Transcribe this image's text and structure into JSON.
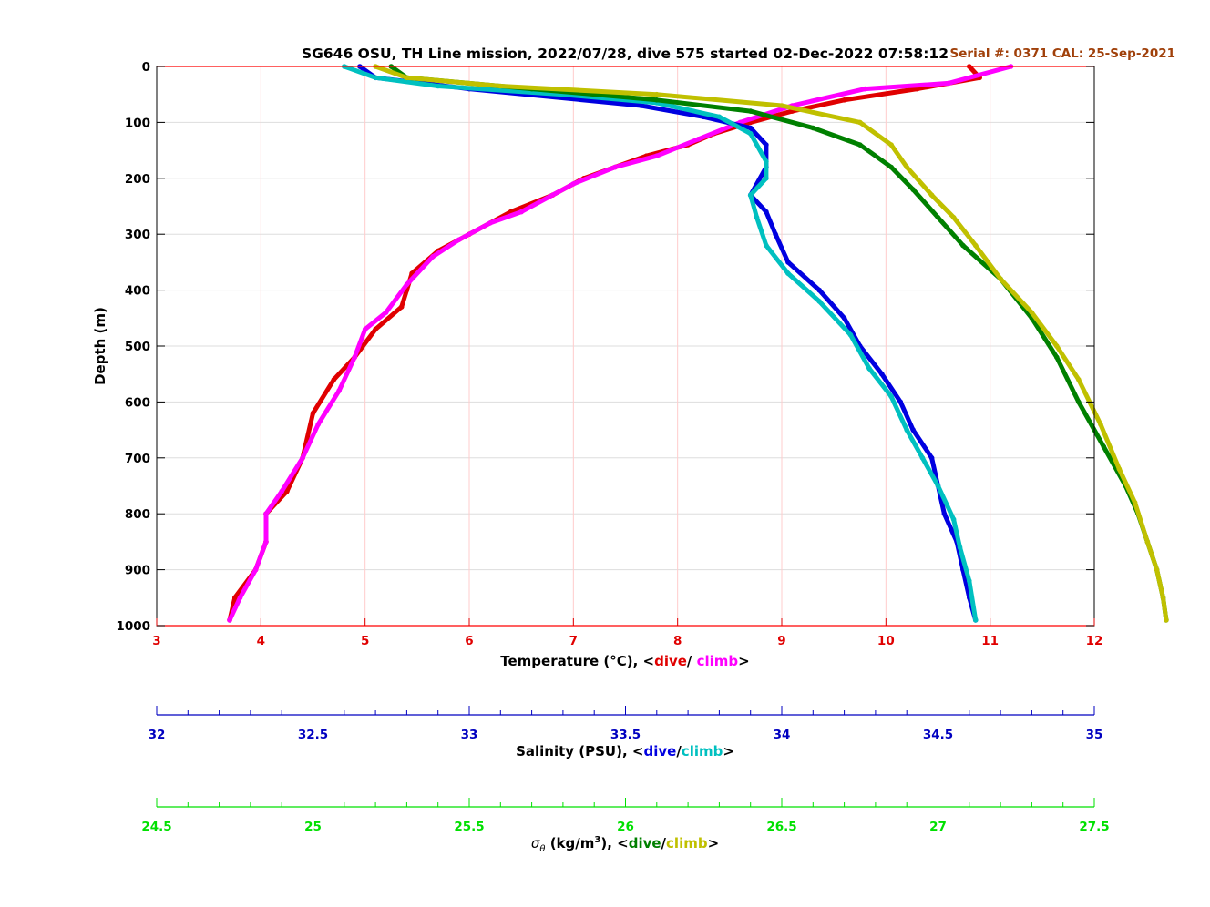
{
  "chart_data": {
    "type": "scatter",
    "title": "SG646 OSU, TH Line mission, 2022/07/28, dive 575 started 02-Dec-2022 07:58:12",
    "serial_label": "Serial #: 0371  CAL: 25-Sep-2021",
    "ylabel": "Depth (m)",
    "ylim": [
      0,
      1000
    ],
    "y_reversed": true,
    "yticks": [
      "0",
      "100",
      "200",
      "300",
      "400",
      "500",
      "600",
      "700",
      "800",
      "900",
      "1000"
    ],
    "grid": true,
    "axes": {
      "temperature": {
        "label_prefix": "Temperature (°C), <",
        "dive_label": "dive",
        "sep": "/ ",
        "climb_label": "climb",
        "label_suffix": ">",
        "xlim": [
          3,
          12
        ],
        "ticks": [
          "3",
          "4",
          "5",
          "6",
          "7",
          "8",
          "9",
          "10",
          "11",
          "12"
        ],
        "color": "#e00000"
      },
      "salinity": {
        "label_prefix": "Salinity (PSU), <",
        "dive_label": "dive",
        "sep": "/",
        "climb_label": "climb",
        "label_suffix": ">",
        "xlim": [
          32,
          35
        ],
        "ticks": [
          "32",
          "32.5",
          "33",
          "33.5",
          "34",
          "34.5",
          "35"
        ],
        "color": "#0000c0"
      },
      "density": {
        "label_sigma": "σ",
        "label_theta": "θ",
        "label_unit": " (kg/m",
        "label_exp": "3",
        "label_prefix": "), <",
        "dive_label": "dive",
        "sep": "/",
        "climb_label": "climb",
        "label_suffix": ">",
        "xlim": [
          24.5,
          27.5
        ],
        "ticks": [
          "24.5",
          "25",
          "25.5",
          "26",
          "26.5",
          "27",
          "27.5"
        ],
        "color": "#00e000"
      }
    },
    "series": [
      {
        "name": "Temperature dive",
        "axis": "temperature",
        "color": "#e00000",
        "points": [
          [
            10.8,
            0
          ],
          [
            10.9,
            20
          ],
          [
            10.3,
            40
          ],
          [
            9.6,
            60
          ],
          [
            9.1,
            80
          ],
          [
            8.7,
            100
          ],
          [
            8.35,
            120
          ],
          [
            8.1,
            140
          ],
          [
            7.7,
            160
          ],
          [
            7.4,
            180
          ],
          [
            7.1,
            200
          ],
          [
            6.8,
            230
          ],
          [
            6.4,
            260
          ],
          [
            6.0,
            300
          ],
          [
            5.7,
            330
          ],
          [
            5.45,
            370
          ],
          [
            5.4,
            400
          ],
          [
            5.35,
            430
          ],
          [
            5.1,
            470
          ],
          [
            4.9,
            520
          ],
          [
            4.7,
            560
          ],
          [
            4.5,
            620
          ],
          [
            4.4,
            700
          ],
          [
            4.25,
            760
          ],
          [
            4.05,
            800
          ],
          [
            4.05,
            850
          ],
          [
            3.95,
            900
          ],
          [
            3.75,
            950
          ],
          [
            3.7,
            990
          ]
        ]
      },
      {
        "name": "Temperature climb",
        "axis": "temperature",
        "color": "#ff00ff",
        "points": [
          [
            11.2,
            0
          ],
          [
            10.6,
            30
          ],
          [
            9.8,
            40
          ],
          [
            9.1,
            70
          ],
          [
            8.6,
            100
          ],
          [
            8.2,
            130
          ],
          [
            7.8,
            160
          ],
          [
            7.4,
            180
          ],
          [
            7.0,
            210
          ],
          [
            6.5,
            260
          ],
          [
            6.2,
            280
          ],
          [
            5.9,
            310
          ],
          [
            5.65,
            340
          ],
          [
            5.4,
            390
          ],
          [
            5.2,
            440
          ],
          [
            5.0,
            470
          ],
          [
            4.9,
            520
          ],
          [
            4.75,
            580
          ],
          [
            4.55,
            640
          ],
          [
            4.4,
            700
          ],
          [
            4.2,
            760
          ],
          [
            4.05,
            800
          ],
          [
            4.05,
            850
          ],
          [
            3.95,
            900
          ],
          [
            3.8,
            950
          ],
          [
            3.7,
            990
          ]
        ]
      },
      {
        "name": "Salinity dive",
        "axis": "salinity",
        "color": "#0000e0",
        "points": [
          [
            32.65,
            0
          ],
          [
            32.7,
            20
          ],
          [
            33.0,
            40
          ],
          [
            33.55,
            70
          ],
          [
            33.75,
            90
          ],
          [
            33.9,
            110
          ],
          [
            33.95,
            140
          ],
          [
            33.95,
            180
          ],
          [
            33.9,
            230
          ],
          [
            33.95,
            260
          ],
          [
            33.98,
            300
          ],
          [
            34.02,
            350
          ],
          [
            34.12,
            400
          ],
          [
            34.2,
            450
          ],
          [
            34.25,
            500
          ],
          [
            34.32,
            550
          ],
          [
            34.38,
            600
          ],
          [
            34.42,
            650
          ],
          [
            34.48,
            700
          ],
          [
            34.5,
            750
          ],
          [
            34.52,
            800
          ],
          [
            34.56,
            850
          ],
          [
            34.58,
            900
          ],
          [
            34.6,
            950
          ],
          [
            34.62,
            990
          ]
        ]
      },
      {
        "name": "Salinity climb",
        "axis": "salinity",
        "color": "#00c0c0",
        "points": [
          [
            32.6,
            0
          ],
          [
            32.7,
            20
          ],
          [
            32.9,
            35
          ],
          [
            33.3,
            50
          ],
          [
            33.6,
            65
          ],
          [
            33.8,
            90
          ],
          [
            33.9,
            120
          ],
          [
            33.95,
            170
          ],
          [
            33.95,
            200
          ],
          [
            33.9,
            230
          ],
          [
            33.92,
            270
          ],
          [
            33.95,
            320
          ],
          [
            34.02,
            370
          ],
          [
            34.12,
            420
          ],
          [
            34.22,
            480
          ],
          [
            34.28,
            540
          ],
          [
            34.35,
            590
          ],
          [
            34.4,
            650
          ],
          [
            34.45,
            700
          ],
          [
            34.5,
            750
          ],
          [
            34.55,
            810
          ],
          [
            34.57,
            860
          ],
          [
            34.6,
            920
          ],
          [
            34.62,
            990
          ]
        ]
      },
      {
        "name": "Sigma-theta dive",
        "axis": "density",
        "color": "#008000",
        "points": [
          [
            25.25,
            0
          ],
          [
            25.3,
            20
          ],
          [
            25.7,
            40
          ],
          [
            26.1,
            60
          ],
          [
            26.4,
            80
          ],
          [
            26.6,
            110
          ],
          [
            26.75,
            140
          ],
          [
            26.85,
            180
          ],
          [
            26.92,
            220
          ],
          [
            27.0,
            270
          ],
          [
            27.08,
            320
          ],
          [
            27.2,
            380
          ],
          [
            27.3,
            450
          ],
          [
            27.38,
            520
          ],
          [
            27.45,
            600
          ],
          [
            27.53,
            680
          ],
          [
            27.6,
            750
          ],
          [
            27.64,
            800
          ],
          [
            27.67,
            850
          ],
          [
            27.7,
            900
          ],
          [
            27.72,
            950
          ],
          [
            27.73,
            990
          ]
        ]
      },
      {
        "name": "Sigma-theta climb",
        "axis": "density",
        "color": "#c0c000",
        "points": [
          [
            25.2,
            0
          ],
          [
            25.3,
            20
          ],
          [
            25.6,
            35
          ],
          [
            26.1,
            50
          ],
          [
            26.5,
            70
          ],
          [
            26.75,
            100
          ],
          [
            26.85,
            140
          ],
          [
            26.9,
            180
          ],
          [
            26.98,
            230
          ],
          [
            27.05,
            270
          ],
          [
            27.12,
            320
          ],
          [
            27.2,
            380
          ],
          [
            27.3,
            440
          ],
          [
            27.38,
            500
          ],
          [
            27.45,
            560
          ],
          [
            27.52,
            640
          ],
          [
            27.58,
            720
          ],
          [
            27.63,
            780
          ],
          [
            27.67,
            850
          ],
          [
            27.7,
            900
          ],
          [
            27.72,
            950
          ],
          [
            27.73,
            990
          ]
        ]
      }
    ]
  }
}
